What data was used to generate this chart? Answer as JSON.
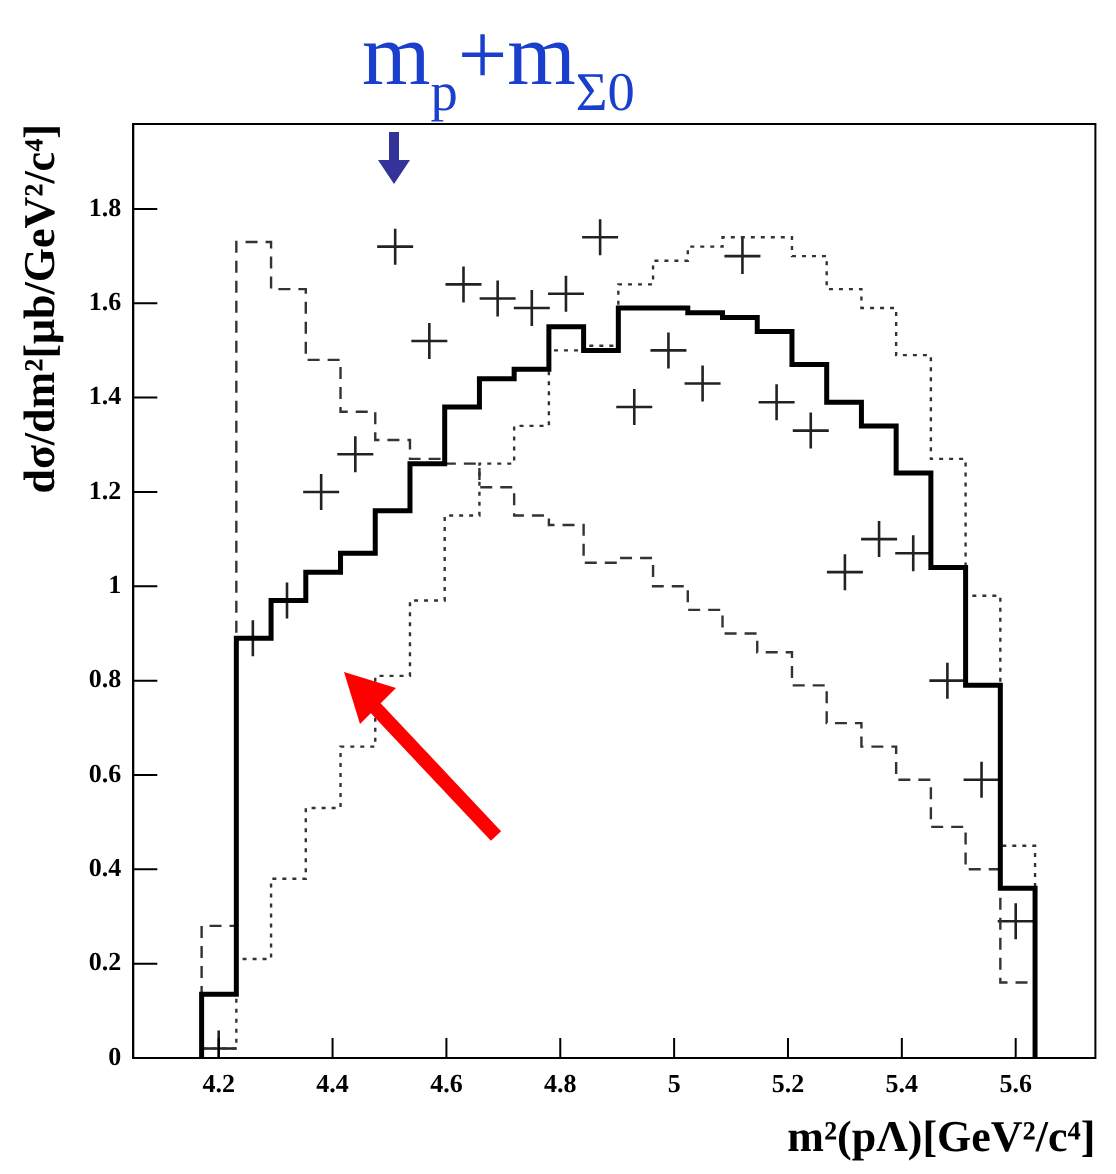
{
  "chart_data": {
    "type": "histogram",
    "xlabel": "m²(pΛ)[GeV²/c⁴]",
    "ylabel": "dσ/dm²[μb/GeV²/c⁴]",
    "bins": [
      4.17,
      4.231,
      4.292,
      4.353,
      4.414,
      4.475,
      4.536,
      4.597,
      4.658,
      4.719,
      4.78,
      4.841,
      4.902,
      4.963,
      5.024,
      5.085,
      5.146,
      5.207,
      5.268,
      5.329,
      5.39,
      5.451,
      5.512,
      5.573,
      5.634
    ],
    "series": [
      {
        "color": "#000000",
        "line_style": "solid",
        "values": [
          0.135,
          0.89,
          0.97,
          1.03,
          1.07,
          1.16,
          1.26,
          1.38,
          1.44,
          1.46,
          1.55,
          1.5,
          1.59,
          1.59,
          1.58,
          1.57,
          1.54,
          1.47,
          1.39,
          1.34,
          1.24,
          1.04,
          0.79,
          0.36
        ]
      },
      {
        "color": "#333333",
        "line_style": "dashed",
        "values": [
          0.28,
          1.73,
          1.63,
          1.48,
          1.37,
          1.31,
          1.27,
          1.26,
          1.21,
          1.15,
          1.13,
          1.05,
          1.06,
          1.0,
          0.95,
          0.9,
          0.86,
          0.79,
          0.71,
          0.66,
          0.59,
          0.49,
          0.4,
          0.16
        ]
      },
      {
        "color": "#333333",
        "line_style": "dotted",
        "values": [
          0.02,
          0.21,
          0.38,
          0.53,
          0.66,
          0.81,
          0.97,
          1.15,
          1.26,
          1.34,
          1.5,
          1.51,
          1.64,
          1.69,
          1.72,
          1.74,
          1.74,
          1.7,
          1.63,
          1.59,
          1.49,
          1.27,
          0.98,
          0.45
        ]
      },
      {
        "type": "scatter",
        "color": "#222222",
        "marker": "cross",
        "x": [
          4.2,
          4.26,
          4.32,
          4.38,
          4.44,
          4.51,
          4.57,
          4.63,
          4.69,
          4.75,
          4.81,
          4.87,
          4.93,
          4.99,
          5.05,
          5.12,
          5.18,
          5.24,
          5.3,
          5.36,
          5.42,
          5.48,
          5.54,
          5.6
        ],
        "values": [
          0.02,
          0.89,
          0.97,
          1.2,
          1.28,
          1.72,
          1.52,
          1.64,
          1.61,
          1.59,
          1.62,
          1.74,
          1.38,
          1.5,
          1.43,
          1.7,
          1.39,
          1.33,
          1.03,
          1.1,
          1.07,
          0.8,
          0.59,
          0.29
        ]
      }
    ],
    "xlim": [
      4.05,
      5.74
    ],
    "xticks": [
      4.2,
      4.4,
      4.6,
      4.8,
      5,
      5.2,
      5.4,
      5.6
    ],
    "ylim": [
      0,
      1.98
    ],
    "yticks": [
      0,
      0.2,
      0.4,
      0.6,
      0.8,
      1,
      1.2,
      1.4,
      1.6,
      1.8
    ],
    "grid": false,
    "legend": false,
    "annotations": [
      "m$_{p}$+m$_{Σ0}$"
    ]
  }
}
